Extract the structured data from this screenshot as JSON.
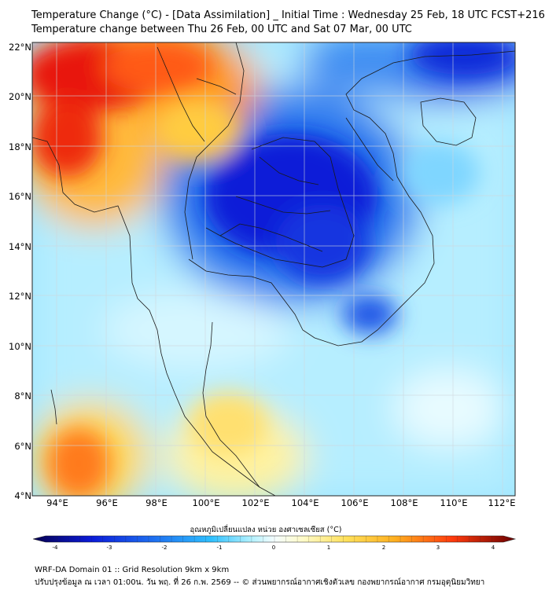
{
  "title_line1": "Temperature Change (°C) - [Data Assimilation] _ Initial Time : Wednesday 25 Feb, 18 UTC FCST+216",
  "title_line2": "Temperature change between Thu 26 Feb, 00 UTC and Sat 07 Mar, 00 UTC",
  "lat_labels": [
    "22°N",
    "20°N",
    "18°N",
    "16°N",
    "14°N",
    "12°N",
    "10°N",
    "8°N",
    "6°N",
    "4°N"
  ],
  "lon_labels": [
    "94°E",
    "96°E",
    "98°E",
    "100°E",
    "102°E",
    "104°E",
    "106°E",
    "108°E",
    "110°E",
    "112°E"
  ],
  "map_extent": {
    "lon_min": 93,
    "lon_max": 112.5,
    "lat_min": 4,
    "lat_max": 22.2
  },
  "colorbar": {
    "title": "อุณหภูมิเปลี่ยนแปลง หน่วย องศาเซลเซียส (°C)",
    "ticks": [
      "-4",
      "-3",
      "-2",
      "-1",
      "0",
      "1",
      "2",
      "3",
      "4"
    ],
    "range": [
      -4,
      4
    ]
  },
  "footer_line1": "WRF-DA Domain 01 :: Grid Resolution 9km x 9km",
  "footer_line2": "ปรับปรุงข้อมูล ณ เวลา 01:00น. วัน พฤ. ที่ 26 ก.พ. 2569 -- © ส่วนพยากรณ์อากาศเชิงตัวเลข กองพยากรณ์อากาศ กรมอุตุนิยมวิทยา",
  "colors": {
    "warm_dark": "#e8170c",
    "warm": "#ff8a1a",
    "warm_light": "#ffe05a",
    "neutral": "#dff7ff",
    "cool_light": "#5fd6ff",
    "cool": "#1e8af0",
    "cool_dark": "#0a1ad8"
  }
}
